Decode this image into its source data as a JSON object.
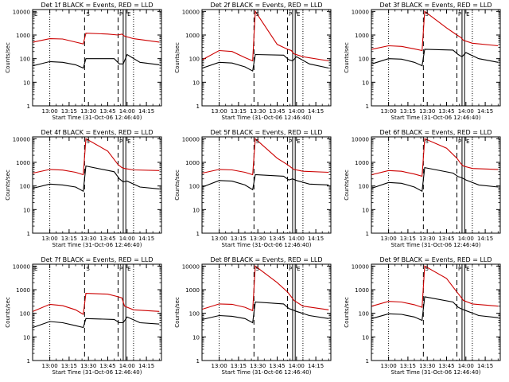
{
  "figure": {
    "panels": [
      {
        "title": "Det 1f  BLACK = Events, RED = LLD",
        "markers": {
          "S": true,
          "P": true,
          "E": true,
          "E_left": true
        }
      },
      {
        "title": "Det 2f  BLACK = Events, RED = LLD",
        "markers": {
          "S": true,
          "P": true,
          "E": true,
          "E_left": false
        }
      },
      {
        "title": "Det 3f  BLACK = Events, RED = LLD",
        "markers": {
          "S": true,
          "P": true,
          "E": true,
          "E_left": false
        }
      },
      {
        "title": "Det 4f  BLACK = Events, RED = LLD",
        "markers": {
          "S": true,
          "P": true,
          "E": true,
          "E_left": false
        }
      },
      {
        "title": "Det 5f  BLACK = Events, RED = LLD",
        "markers": {
          "S": true,
          "P": true,
          "E": true,
          "E_left": false
        }
      },
      {
        "title": "Det 6f  BLACK = Events, RED = LLD",
        "markers": {
          "S": true,
          "P": true,
          "E": true,
          "E_left": false
        }
      },
      {
        "title": "Det 7f  BLACK = Events, RED = LLD",
        "markers": {
          "S": true,
          "P": true,
          "E": true,
          "E_left": true
        }
      },
      {
        "title": "Det 8f  BLACK = Events, RED = LLD",
        "markers": {
          "S": true,
          "P": true,
          "E": true,
          "E_left": false
        }
      },
      {
        "title": "Det 9f  BLACK = Events, RED = LLD",
        "markers": {
          "S": true,
          "P": true,
          "E": true,
          "E_left": false
        }
      }
    ],
    "marker_labels": {
      "S": "S",
      "P": "P",
      "E": "E"
    },
    "ylabel": "Counts/sec",
    "xlabel": "Start Time (31-Oct-06 12:46:40)",
    "xtick_labels": [
      "13:00",
      "13:15",
      "13:30",
      "13:45",
      "14:00",
      "14:15"
    ],
    "ytick_labels": [
      "1",
      "10",
      "100",
      "1000",
      "10000"
    ],
    "colors": {
      "events": "#000000",
      "lld": "#cc0000",
      "frame": "#000000"
    }
  },
  "chart_data": [
    {
      "type": "line",
      "title": "Det 1f  BLACK = Events, RED = LLD",
      "xlabel": "Start Time (31-Oct-06 12:46:40)",
      "ylabel": "Counts/sec",
      "yscale": "log",
      "ylim": [
        1,
        12000
      ],
      "xlim": [
        "12:46:40",
        "14:26:40"
      ],
      "xticks": [
        "13:00",
        "13:15",
        "13:30",
        "13:45",
        "14:00",
        "14:15"
      ],
      "yticks": [
        1,
        10,
        100,
        1000,
        10000
      ],
      "vlines": {
        "dotted": [
          "13:00",
          "14:05"
        ],
        "dashed": [
          "13:27",
          "13:53"
        ],
        "solid": [
          "13:57",
          "13:59"
        ]
      },
      "series": [
        {
          "name": "Events",
          "color": "#000000",
          "x": [
            "12:47",
            "13:00",
            "13:10",
            "13:20",
            "13:26",
            "13:28",
            "13:50",
            "13:54",
            "13:57",
            "14:00",
            "14:10",
            "14:25"
          ],
          "values": [
            50,
            75,
            70,
            55,
            40,
            100,
            100,
            60,
            60,
            150,
            70,
            55
          ]
        },
        {
          "name": "LLD",
          "color": "#cc0000",
          "x": [
            "12:47",
            "13:00",
            "13:10",
            "13:20",
            "13:26",
            "13:28",
            "13:45",
            "13:53",
            "13:56",
            "13:58",
            "14:05",
            "14:25"
          ],
          "values": [
            500,
            700,
            680,
            500,
            420,
            1200,
            1100,
            1000,
            1100,
            900,
            700,
            500
          ]
        }
      ]
    },
    {
      "type": "line",
      "title": "Det 2f  BLACK = Events, RED = LLD",
      "xlabel": "Start Time (31-Oct-06 12:46:40)",
      "ylabel": "Counts/sec",
      "yscale": "log",
      "ylim": [
        1,
        12000
      ],
      "xlim": [
        "12:46:40",
        "14:26:40"
      ],
      "xticks": [
        "13:00",
        "13:15",
        "13:30",
        "13:45",
        "14:00",
        "14:15"
      ],
      "yticks": [
        1,
        10,
        100,
        1000,
        10000
      ],
      "vlines": {
        "dotted": [
          "13:00",
          "14:05"
        ],
        "dashed": [
          "13:27",
          "13:53"
        ],
        "solid": [
          "13:57",
          "13:59"
        ]
      },
      "series": [
        {
          "name": "Events",
          "color": "#000000",
          "x": [
            "12:47",
            "13:00",
            "13:10",
            "13:20",
            "13:26",
            "13:28",
            "13:50",
            "13:54",
            "13:57",
            "14:00",
            "14:10",
            "14:25"
          ],
          "values": [
            40,
            70,
            65,
            45,
            30,
            150,
            140,
            90,
            80,
            120,
            60,
            40
          ]
        },
        {
          "name": "LLD",
          "color": "#cc0000",
          "x": [
            "12:47",
            "13:00",
            "13:10",
            "13:20",
            "13:26",
            "13:28",
            "13:45",
            "13:53",
            "13:56",
            "13:58",
            "14:05",
            "14:25"
          ],
          "values": [
            90,
            220,
            200,
            110,
            80,
            10000,
            400,
            250,
            220,
            160,
            120,
            80
          ]
        }
      ]
    },
    {
      "type": "line",
      "title": "Det 3f  BLACK = Events, RED = LLD",
      "xlabel": "Start Time (31-Oct-06 12:46:40)",
      "ylabel": "Counts/sec",
      "yscale": "log",
      "ylim": [
        1,
        12000
      ],
      "xlim": [
        "12:46:40",
        "14:26:40"
      ],
      "xticks": [
        "13:00",
        "13:15",
        "13:30",
        "13:45",
        "14:00",
        "14:15"
      ],
      "yticks": [
        1,
        10,
        100,
        1000,
        10000
      ],
      "vlines": {
        "dotted": [
          "13:00",
          "14:05"
        ],
        "dashed": [
          "13:27",
          "13:53"
        ],
        "solid": [
          "13:57",
          "13:59"
        ]
      },
      "series": [
        {
          "name": "Events",
          "color": "#000000",
          "x": [
            "12:47",
            "13:00",
            "13:10",
            "13:20",
            "13:26",
            "13:28",
            "13:50",
            "13:54",
            "13:57",
            "14:00",
            "14:10",
            "14:25"
          ],
          "values": [
            60,
            100,
            95,
            70,
            50,
            250,
            230,
            150,
            120,
            180,
            100,
            70
          ]
        },
        {
          "name": "LLD",
          "color": "#cc0000",
          "x": [
            "12:47",
            "13:00",
            "13:10",
            "13:20",
            "13:26",
            "13:28",
            "13:45",
            "13:53",
            "13:56",
            "13:58",
            "14:05",
            "14:25"
          ],
          "values": [
            250,
            350,
            330,
            260,
            220,
            10000,
            2000,
            1000,
            800,
            600,
            450,
            350
          ]
        }
      ]
    },
    {
      "type": "line",
      "title": "Det 4f  BLACK = Events, RED = LLD",
      "xlabel": "Start Time (31-Oct-06 12:46:40)",
      "ylabel": "Counts/sec",
      "yscale": "log",
      "ylim": [
        1,
        12000
      ],
      "xlim": [
        "12:46:40",
        "14:26:40"
      ],
      "xticks": [
        "13:00",
        "13:15",
        "13:30",
        "13:45",
        "14:00",
        "14:15"
      ],
      "yticks": [
        1,
        10,
        100,
        1000,
        10000
      ],
      "vlines": {
        "dotted": [
          "13:00",
          "14:05"
        ],
        "dashed": [
          "13:27",
          "13:53"
        ],
        "solid": [
          "13:57",
          "13:59"
        ]
      },
      "series": [
        {
          "name": "Events",
          "color": "#000000",
          "x": [
            "12:47",
            "13:00",
            "13:10",
            "13:20",
            "13:26",
            "13:28",
            "13:50",
            "13:54",
            "13:57",
            "14:00",
            "14:10",
            "14:25"
          ],
          "values": [
            80,
            120,
            110,
            90,
            60,
            700,
            400,
            200,
            150,
            160,
            90,
            75
          ]
        },
        {
          "name": "LLD",
          "color": "#cc0000",
          "x": [
            "12:47",
            "13:00",
            "13:10",
            "13:20",
            "13:26",
            "13:28",
            "13:45",
            "13:53",
            "13:56",
            "13:58",
            "14:05",
            "14:25"
          ],
          "values": [
            350,
            500,
            470,
            380,
            300,
            10000,
            3000,
            800,
            600,
            550,
            480,
            450
          ]
        }
      ]
    },
    {
      "type": "line",
      "title": "Det 5f  BLACK = Events, RED = LLD",
      "xlabel": "Start Time (31-Oct-06 12:46:40)",
      "ylabel": "Counts/sec",
      "yscale": "log",
      "ylim": [
        1,
        12000
      ],
      "xlim": [
        "12:46:40",
        "14:26:40"
      ],
      "xticks": [
        "13:00",
        "13:15",
        "13:30",
        "13:45",
        "14:00",
        "14:15"
      ],
      "yticks": [
        1,
        10,
        100,
        1000,
        10000
      ],
      "vlines": {
        "dotted": [
          "13:00",
          "14:05"
        ],
        "dashed": [
          "13:27",
          "13:53"
        ],
        "solid": [
          "13:57",
          "13:59"
        ]
      },
      "series": [
        {
          "name": "Events",
          "color": "#000000",
          "x": [
            "12:47",
            "13:00",
            "13:10",
            "13:20",
            "13:26",
            "13:28",
            "13:50",
            "13:54",
            "13:57",
            "14:00",
            "14:10",
            "14:25"
          ],
          "values": [
            90,
            170,
            160,
            110,
            70,
            300,
            260,
            180,
            200,
            170,
            120,
            110
          ]
        },
        {
          "name": "LLD",
          "color": "#cc0000",
          "x": [
            "12:47",
            "13:00",
            "13:10",
            "13:20",
            "13:26",
            "13:28",
            "13:45",
            "13:53",
            "13:56",
            "13:58",
            "14:05",
            "14:25"
          ],
          "values": [
            350,
            500,
            480,
            380,
            300,
            10000,
            1500,
            800,
            600,
            500,
            420,
            380
          ]
        }
      ]
    },
    {
      "type": "line",
      "title": "Det 6f  BLACK = Events, RED = LLD",
      "xlabel": "Start Time (31-Oct-06 12:46:40)",
      "ylabel": "Counts/sec",
      "yscale": "log",
      "ylim": [
        1,
        12000
      ],
      "xlim": [
        "12:46:40",
        "14:26:40"
      ],
      "xticks": [
        "13:00",
        "13:15",
        "13:30",
        "13:45",
        "14:00",
        "14:15"
      ],
      "yticks": [
        1,
        10,
        100,
        1000,
        10000
      ],
      "vlines": {
        "dotted": [
          "13:00",
          "14:05"
        ],
        "dashed": [
          "13:27",
          "13:53"
        ],
        "solid": [
          "13:57",
          "13:59"
        ]
      },
      "series": [
        {
          "name": "Events",
          "color": "#000000",
          "x": [
            "12:47",
            "13:00",
            "13:10",
            "13:20",
            "13:26",
            "13:28",
            "13:50",
            "13:54",
            "13:57",
            "14:00",
            "14:10",
            "14:25"
          ],
          "values": [
            80,
            140,
            130,
            90,
            60,
            600,
            350,
            250,
            220,
            180,
            110,
            90
          ]
        },
        {
          "name": "LLD",
          "color": "#cc0000",
          "x": [
            "12:47",
            "13:00",
            "13:10",
            "13:20",
            "13:26",
            "13:28",
            "13:45",
            "13:53",
            "13:56",
            "13:58",
            "14:05",
            "14:25"
          ],
          "values": [
            300,
            450,
            420,
            320,
            260,
            10000,
            4000,
            1500,
            900,
            700,
            550,
            500
          ]
        }
      ]
    },
    {
      "type": "line",
      "title": "Det 7f  BLACK = Events, RED = LLD",
      "xlabel": "Start Time (31-Oct-06 12:46:40)",
      "ylabel": "Counts/sec",
      "yscale": "log",
      "ylim": [
        1,
        12000
      ],
      "xlim": [
        "12:46:40",
        "14:26:40"
      ],
      "xticks": [
        "13:00",
        "13:15",
        "13:30",
        "13:45",
        "14:00",
        "14:15"
      ],
      "yticks": [
        1,
        10,
        100,
        1000,
        10000
      ],
      "vlines": {
        "dotted": [
          "13:00",
          "14:05"
        ],
        "dashed": [
          "13:27",
          "13:53"
        ],
        "solid": [
          "13:57",
          "13:59"
        ]
      },
      "series": [
        {
          "name": "Events",
          "color": "#000000",
          "x": [
            "12:47",
            "13:00",
            "13:10",
            "13:20",
            "13:26",
            "13:28",
            "13:50",
            "13:54",
            "13:57",
            "14:00",
            "14:10",
            "14:25"
          ],
          "values": [
            25,
            45,
            40,
            30,
            25,
            60,
            55,
            40,
            40,
            70,
            40,
            35
          ]
        },
        {
          "name": "LLD",
          "color": "#cc0000",
          "x": [
            "12:47",
            "13:00",
            "13:10",
            "13:20",
            "13:26",
            "13:28",
            "13:45",
            "13:53",
            "13:56",
            "13:58",
            "14:05",
            "14:25"
          ],
          "values": [
            120,
            240,
            210,
            140,
            90,
            700,
            650,
            500,
            450,
            200,
            140,
            120
          ]
        }
      ]
    },
    {
      "type": "line",
      "title": "Det 8f  BLACK = Events, RED = LLD",
      "xlabel": "Start Time (31-Oct-06 12:46:40)",
      "ylabel": "Counts/sec",
      "yscale": "log",
      "ylim": [
        1,
        12000
      ],
      "xlim": [
        "12:46:40",
        "14:26:40"
      ],
      "xticks": [
        "13:00",
        "13:15",
        "13:30",
        "13:45",
        "14:00",
        "14:15"
      ],
      "yticks": [
        1,
        10,
        100,
        1000,
        10000
      ],
      "vlines": {
        "dotted": [
          "13:00",
          "14:05"
        ],
        "dashed": [
          "13:27",
          "13:53"
        ],
        "solid": [
          "13:57",
          "13:59"
        ]
      },
      "series": [
        {
          "name": "Events",
          "color": "#000000",
          "x": [
            "12:47",
            "13:00",
            "13:10",
            "13:20",
            "13:26",
            "13:28",
            "13:50",
            "13:54",
            "13:57",
            "14:00",
            "14:10",
            "14:25"
          ],
          "values": [
            55,
            80,
            75,
            60,
            40,
            300,
            250,
            160,
            140,
            120,
            80,
            60
          ]
        },
        {
          "name": "LLD",
          "color": "#cc0000",
          "x": [
            "12:47",
            "13:00",
            "13:10",
            "13:20",
            "13:26",
            "13:28",
            "13:45",
            "13:53",
            "13:56",
            "13:58",
            "14:05",
            "14:25"
          ],
          "values": [
            150,
            250,
            240,
            180,
            130,
            10000,
            2000,
            800,
            500,
            350,
            200,
            140
          ]
        }
      ]
    },
    {
      "type": "line",
      "title": "Det 9f  BLACK = Events, RED = LLD",
      "xlabel": "Start Time (31-Oct-06 12:46:40)",
      "ylabel": "Counts/sec",
      "yscale": "log",
      "ylim": [
        1,
        12000
      ],
      "xlim": [
        "12:46:40",
        "14:26:40"
      ],
      "xticks": [
        "13:00",
        "13:15",
        "13:30",
        "13:45",
        "14:00",
        "14:15"
      ],
      "yticks": [
        1,
        10,
        100,
        1000,
        10000
      ],
      "vlines": {
        "dotted": [
          "13:00",
          "14:05"
        ],
        "dashed": [
          "13:27",
          "13:53"
        ],
        "solid": [
          "13:57",
          "13:59"
        ]
      },
      "series": [
        {
          "name": "Events",
          "color": "#000000",
          "x": [
            "12:47",
            "13:00",
            "13:10",
            "13:20",
            "13:26",
            "13:28",
            "13:50",
            "13:54",
            "13:57",
            "14:00",
            "14:10",
            "14:25"
          ],
          "values": [
            60,
            95,
            90,
            70,
            50,
            500,
            300,
            180,
            150,
            130,
            80,
            65
          ]
        },
        {
          "name": "LLD",
          "color": "#cc0000",
          "x": [
            "12:47",
            "13:00",
            "13:10",
            "13:20",
            "13:26",
            "13:28",
            "13:45",
            "13:53",
            "13:56",
            "13:58",
            "14:05",
            "14:25"
          ],
          "values": [
            200,
            320,
            300,
            230,
            180,
            10000,
            3000,
            800,
            500,
            350,
            250,
            200
          ]
        }
      ]
    }
  ]
}
